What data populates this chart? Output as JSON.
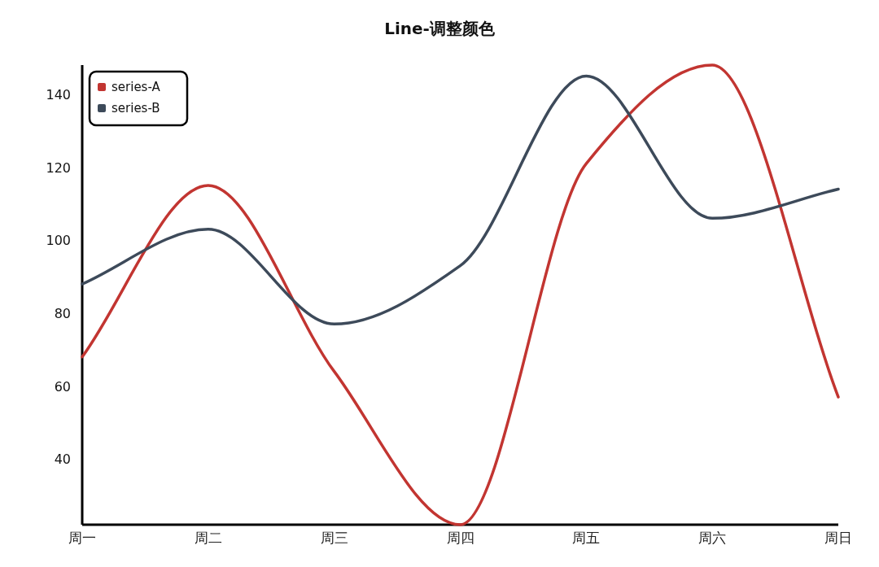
{
  "chart_data": {
    "type": "line",
    "title": "Line-调整颜色",
    "categories": [
      "周一",
      "周二",
      "周三",
      "周四",
      "周五",
      "周六",
      "周日"
    ],
    "series": [
      {
        "name": "series-A",
        "color": "#c23531",
        "values": [
          68,
          115,
          64,
          22,
          121,
          148,
          57
        ]
      },
      {
        "name": "series-B",
        "color": "#3d4a5a",
        "values": [
          88,
          103,
          77,
          93,
          145,
          106,
          114
        ]
      }
    ],
    "ylim": [
      22,
      148
    ],
    "yticks": [
      40,
      60,
      80,
      100,
      120,
      140
    ],
    "grid": false,
    "legend": "top left",
    "marker": "none"
  }
}
